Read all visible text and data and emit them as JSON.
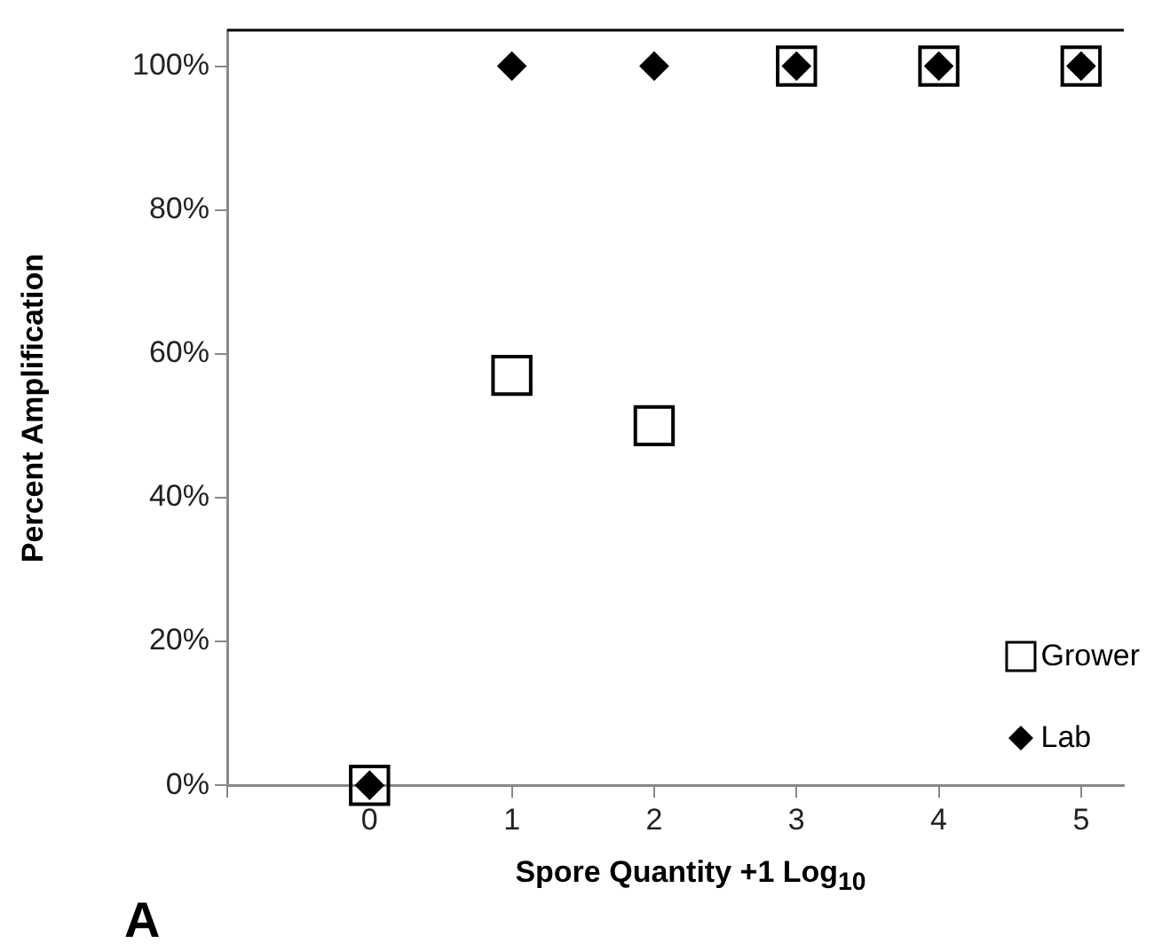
{
  "chart_data": {
    "type": "scatter",
    "xlabel": "Spore Quantity +1 Log$_{10}$",
    "ylabel": "Percent Amplification",
    "x": [
      0,
      1,
      2,
      3,
      4,
      5
    ],
    "series": [
      {
        "name": "Grower",
        "color": "#000000",
        "marker": "square",
        "values": [
          0,
          57,
          50,
          100,
          100,
          100
        ]
      },
      {
        "name": "Lab",
        "color": "#000000",
        "marker": "diamond",
        "values": [
          0,
          100,
          100,
          100,
          100,
          100
        ]
      }
    ],
    "xlim": [
      -1,
      5.3
    ],
    "xticks": [
      {
        "value": -1,
        "label": null
      },
      0,
      1,
      2,
      3,
      4,
      5
    ],
    "ylim": [
      0,
      105
    ],
    "yticks": [
      {
        "value": 0,
        "label": "0%"
      },
      {
        "value": 20,
        "label": "20%"
      },
      {
        "value": 40,
        "label": "40%"
      },
      {
        "value": 60,
        "label": "60%"
      },
      {
        "value": 80,
        "label": "80%"
      },
      {
        "value": 100,
        "label": "100%"
      }
    ],
    "grid": false,
    "legend": "bottom right",
    "annotations": [
      "A"
    ]
  }
}
